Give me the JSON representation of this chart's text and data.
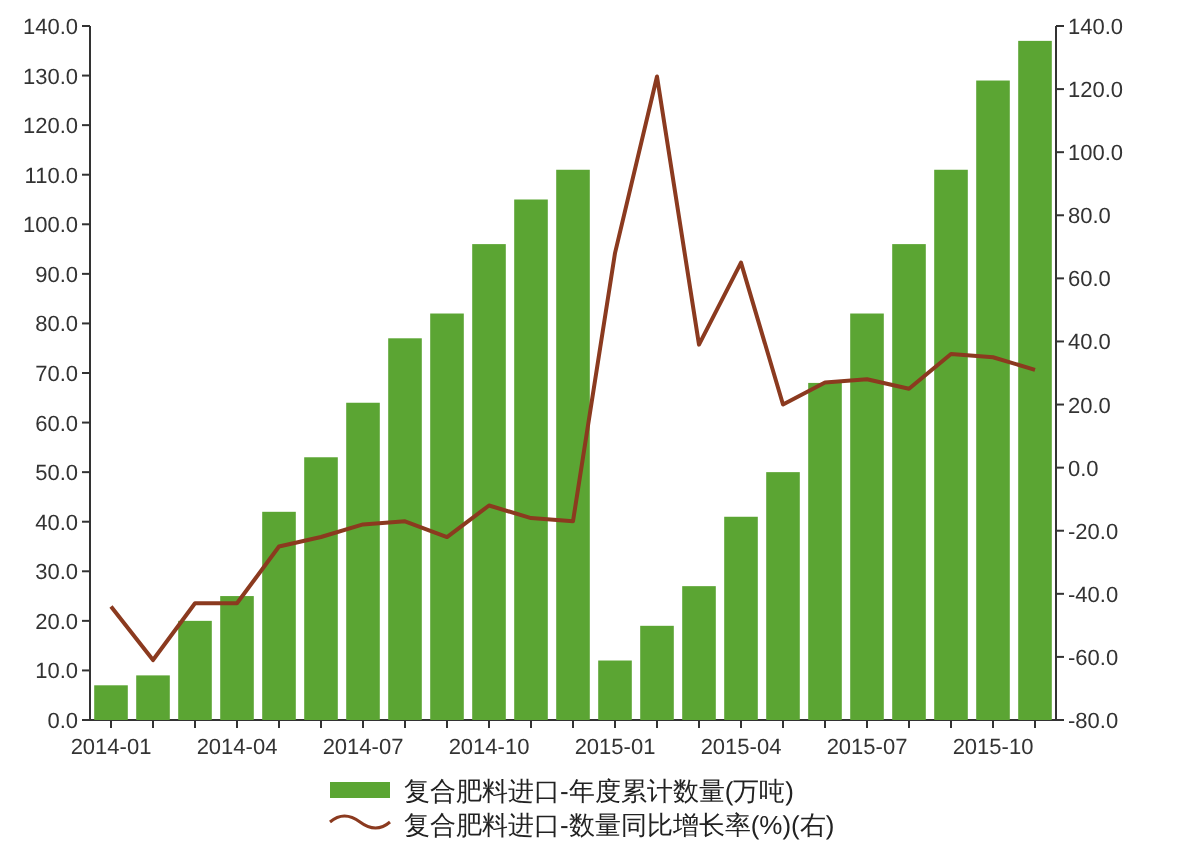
{
  "chart_data": {
    "type": "bar",
    "categories": [
      "2014-01",
      null,
      null,
      "2014-04",
      null,
      null,
      "2014-07",
      null,
      null,
      "2014-10",
      null,
      null,
      "2015-01",
      null,
      null,
      "2015-04",
      null,
      null,
      "2015-07",
      null,
      null,
      "2015-10",
      null
    ],
    "series": [
      {
        "name": "复合肥料进口-年度累计数量(万吨)",
        "color": "#5ba533",
        "values": [
          7,
          9,
          20,
          25,
          42,
          53,
          64,
          77,
          82,
          96,
          105,
          111,
          12,
          19,
          27,
          41,
          50,
          68,
          82,
          96,
          111,
          129,
          137
        ]
      },
      {
        "name": "复合肥料进口-数量同比增长率(%)(右)",
        "type": "line",
        "axis": "y2",
        "color": "#8b3a1f",
        "values": [
          -44,
          -61,
          -43,
          -43,
          -25,
          -22,
          -18,
          -17,
          -22,
          -12,
          -16,
          -17,
          68,
          124,
          39,
          65,
          20,
          27,
          28,
          25,
          36,
          35,
          31
        ]
      }
    ],
    "ylim": [
      0,
      140
    ],
    "yticks": [
      {
        "value": 0,
        "label": "0.0"
      },
      {
        "value": 10,
        "label": "10.0"
      },
      {
        "value": 20,
        "label": "20.0"
      },
      {
        "value": 30,
        "label": "30.0"
      },
      {
        "value": 40,
        "label": "40.0"
      },
      {
        "value": 50,
        "label": "50.0"
      },
      {
        "value": 60,
        "label": "60.0"
      },
      {
        "value": 70,
        "label": "70.0"
      },
      {
        "value": 80,
        "label": "80.0"
      },
      {
        "value": 90,
        "label": "90.0"
      },
      {
        "value": 100,
        "label": "100.0"
      },
      {
        "value": 110,
        "label": "110.0"
      },
      {
        "value": 120,
        "label": "120.0"
      },
      {
        "value": 130,
        "label": "130.0"
      },
      {
        "value": 140,
        "label": "140.0"
      }
    ],
    "y2lim": [
      -80,
      140
    ],
    "y2ticks": [
      {
        "value": -80,
        "label": "-80.0"
      },
      {
        "value": -60,
        "label": "-60.0"
      },
      {
        "value": -40,
        "label": "-40.0"
      },
      {
        "value": -20,
        "label": "-20.0"
      },
      {
        "value": 0,
        "label": "0.0"
      },
      {
        "value": 20,
        "label": "20.0"
      },
      {
        "value": 40,
        "label": "40.0"
      },
      {
        "value": 60,
        "label": "60.0"
      },
      {
        "value": 80,
        "label": "80.0"
      },
      {
        "value": 100,
        "label": "100.0"
      },
      {
        "value": 120,
        "label": "120.0"
      },
      {
        "value": 140,
        "label": "140.0"
      }
    ],
    "legend": "bottom"
  }
}
